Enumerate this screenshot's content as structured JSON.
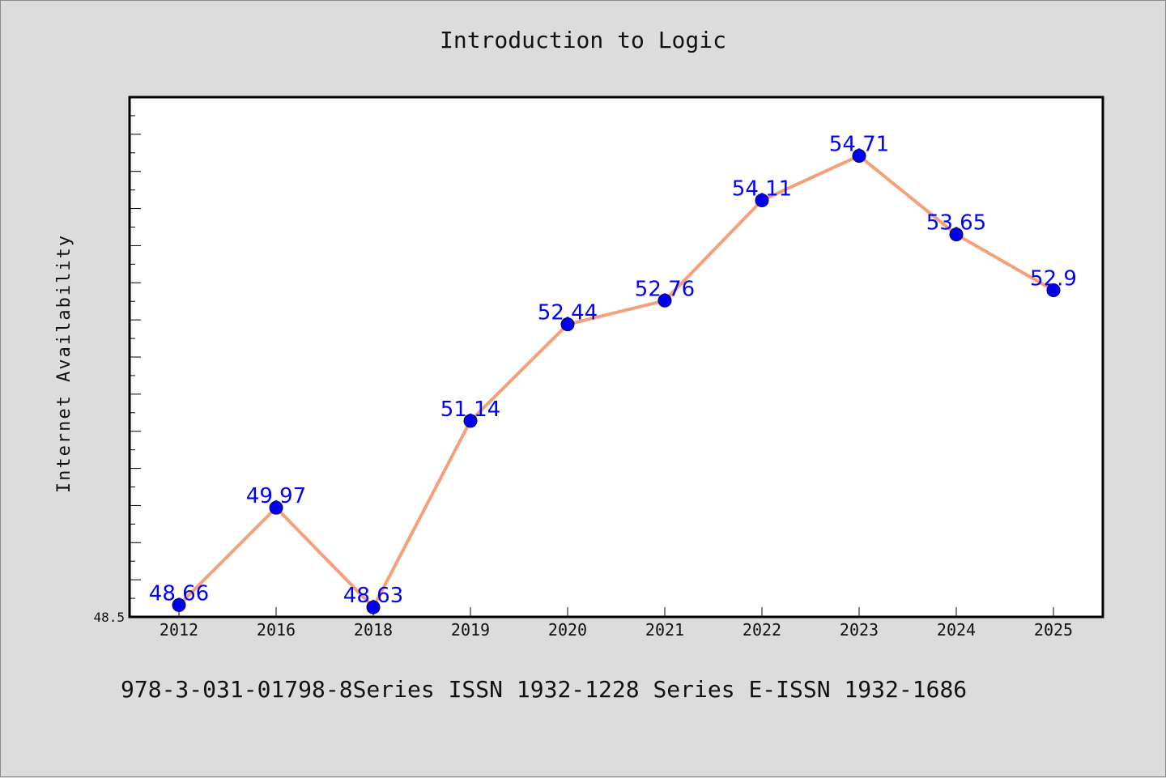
{
  "chart_data": {
    "type": "line",
    "title": "Introduction to Logic",
    "ylabel": "Internet Availability",
    "xlabel": "",
    "categories": [
      "2012",
      "2016",
      "2018",
      "2019",
      "2020",
      "2021",
      "2022",
      "2023",
      "2024",
      "2025"
    ],
    "series": [
      {
        "values": [
          48.66,
          49.97,
          48.63,
          51.14,
          52.44,
          52.76,
          54.11,
          54.71,
          53.65,
          52.9
        ],
        "labels": [
          "48.66",
          "49.97",
          "48.63",
          "51.14",
          "52.44",
          "52.76",
          "54.11",
          "54.71",
          "53.65",
          "52.9"
        ]
      }
    ],
    "ylim": [
      48.5,
      55.5
    ],
    "y_tick_labels": [
      "48.5"
    ],
    "grid": false,
    "colors": {
      "line": "#f4a07a",
      "marker": "#0000ee",
      "data_label": "#0000ff",
      "plot_background": "#ffffff",
      "page_background": "#dcdcdc"
    }
  },
  "footer": {
    "text": "978-3-031-01798-8Series ISSN 1932-1228 Series E-ISSN 1932-1686"
  }
}
